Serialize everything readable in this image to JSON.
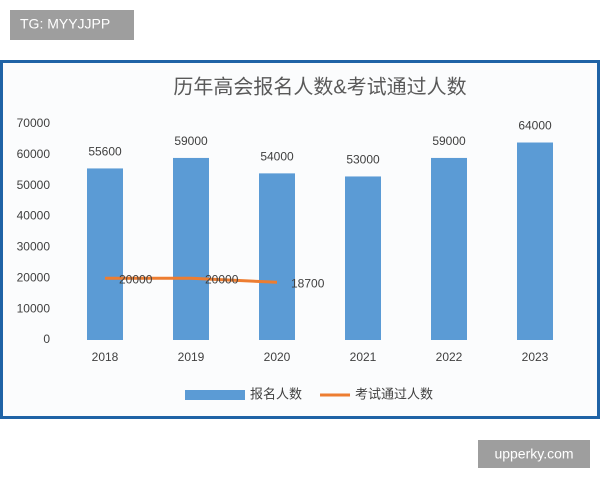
{
  "header_tag": "TG: MYYJJPP",
  "footer_tag": "upperky.com",
  "chart_data": {
    "type": "bar",
    "title": "历年高会报名人数&考试通过人数",
    "categories": [
      "2018",
      "2019",
      "2020",
      "2021",
      "2022",
      "2023"
    ],
    "series": [
      {
        "name": "报名人数",
        "type": "bar",
        "color": "#5b9bd5",
        "values": [
          55600,
          59000,
          54000,
          53000,
          59000,
          64000
        ]
      },
      {
        "name": "考试通过人数",
        "type": "line",
        "color": "#ed7d31",
        "values": [
          20000,
          20000,
          18700,
          null,
          null,
          null
        ]
      }
    ],
    "ylim": [
      0,
      70000
    ],
    "yticks": [
      0,
      10000,
      20000,
      30000,
      40000,
      50000,
      60000,
      70000
    ],
    "grid": false,
    "legend": "bottom"
  }
}
